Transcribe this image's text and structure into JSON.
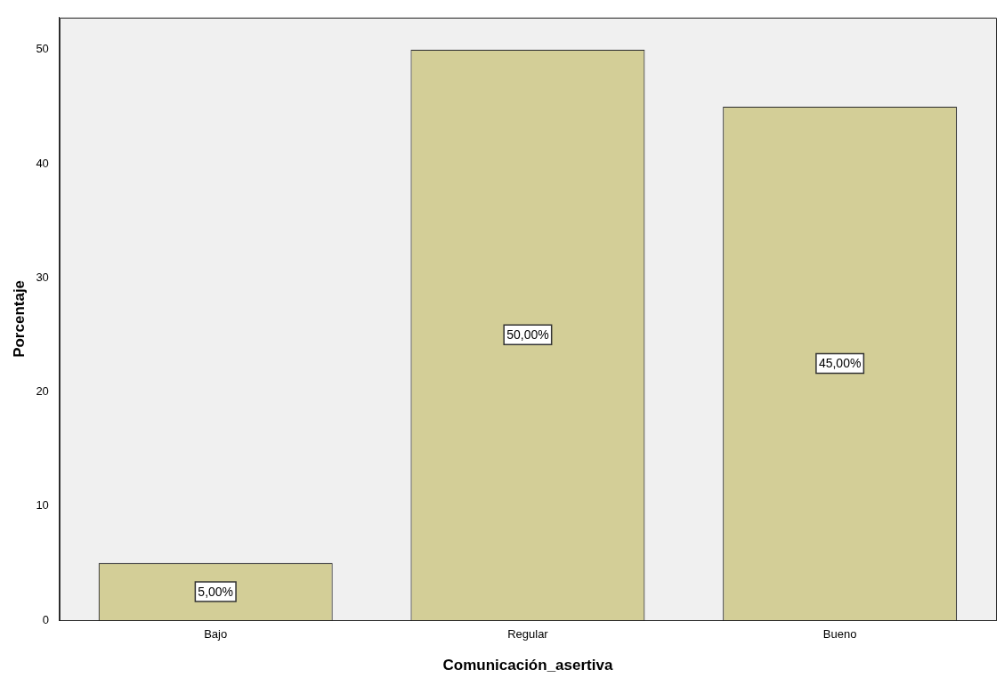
{
  "chart_data": {
    "type": "bar",
    "xlabel": "Comunicación_asertiva",
    "ylabel": "Porcentaje",
    "categories": [
      "Bajo",
      "Regular",
      "Bueno"
    ],
    "values": [
      5,
      50,
      45
    ],
    "color": "#d3ce97",
    "value_labels": [
      "5,00%",
      "50,00%",
      "45,00%"
    ],
    "ylim": [
      0,
      52.8
    ],
    "yticks": [
      0,
      10,
      20,
      30,
      40,
      50
    ],
    "grid": false,
    "legend": false
  }
}
